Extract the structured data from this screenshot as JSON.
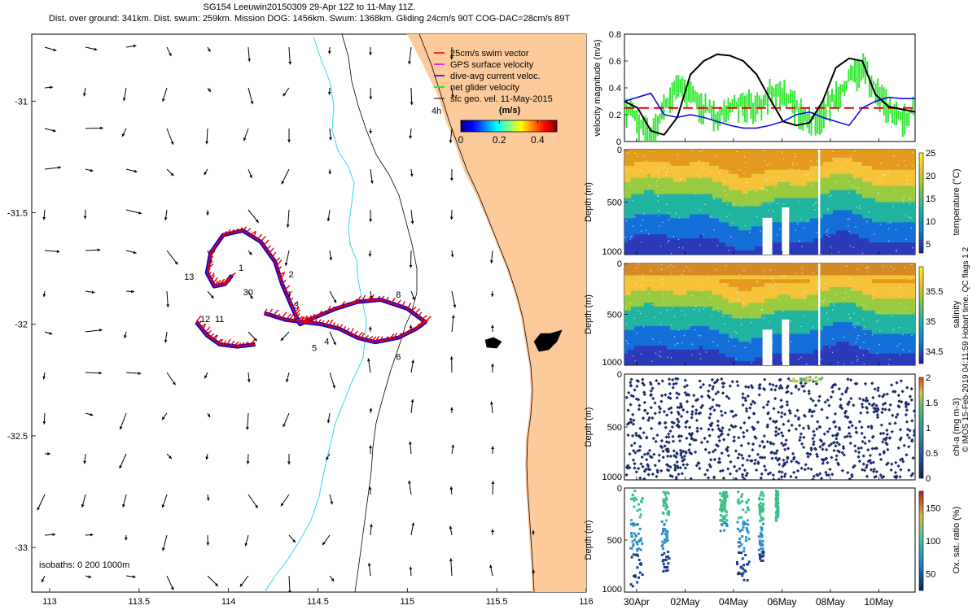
{
  "header": {
    "title": "SG154 Leeuwin20150309 29-Apr 12Z to 11-May 11Z.",
    "subtitle": "Dist. over ground: 341km. Dist. swum: 259km. Mission DOG: 1456km. Swum: 1368km. Gliding 24cm/s 90T COG-DAC=28cm/s 89T"
  },
  "footer_note": "© IMOS 15-Feb-2019 04:11:59 Hobart time. QC flags 1 2",
  "colors": {
    "land": "#FDCB9B",
    "coast": "#000000",
    "isobath_200": "#33D6E6",
    "swim_vector": "#E60000",
    "gps_velocity": "#E600E6",
    "dive_avg": "#0000E6",
    "net_velocity": "#33E633",
    "ref_line": "#E60000"
  },
  "chart_data": [
    {
      "type": "scatter",
      "name": "map",
      "xticks": [
        "113",
        "113.5",
        "114",
        "114.5",
        "115",
        "115.5",
        "116"
      ],
      "yticks": [
        "-31",
        "-31.5",
        "-32",
        "-32.5",
        "-33"
      ],
      "xlim": [
        112.9,
        116
      ],
      "ylim": [
        -33.2,
        -30.7
      ],
      "legend": {
        "placement": "top-right",
        "entries": [
          "25cm/s swim vector",
          "GPS surface velocity",
          "dive-avg current veloc.",
          "net glider velocity",
          "sfc geo. vel. 11-May-2015"
        ]
      },
      "colorbar": {
        "label": "(m/s)",
        "ticks": [
          "0",
          "0.2",
          "0.4"
        ],
        "range": [
          0,
          0.5
        ]
      },
      "isobath_note": "isobaths: 0   200   1000m",
      "track_labels": [
        "1",
        "2",
        "3",
        "4",
        "5",
        "6",
        "8",
        "11",
        "12",
        "13",
        "30"
      ],
      "annotation_4h": "4h",
      "track": [
        [
          114.2,
          -31.95
        ],
        [
          114.32,
          -31.98
        ],
        [
          114.42,
          -31.99
        ],
        [
          114.52,
          -32.0
        ],
        [
          114.62,
          -32.02
        ],
        [
          114.72,
          -32.06
        ],
        [
          114.82,
          -32.08
        ],
        [
          114.95,
          -32.06
        ],
        [
          115.05,
          -32.02
        ],
        [
          115.1,
          -31.99
        ],
        [
          115.0,
          -31.93
        ],
        [
          114.85,
          -31.89
        ],
        [
          114.72,
          -31.9
        ],
        [
          114.6,
          -31.93
        ],
        [
          114.48,
          -31.97
        ],
        [
          114.4,
          -32.0
        ],
        [
          114.37,
          -31.95
        ],
        [
          114.3,
          -31.82
        ],
        [
          114.26,
          -31.72
        ],
        [
          114.18,
          -31.63
        ],
        [
          114.08,
          -31.58
        ],
        [
          113.97,
          -31.6
        ],
        [
          113.9,
          -31.68
        ],
        [
          113.88,
          -31.77
        ],
        [
          113.92,
          -31.83
        ],
        [
          113.98,
          -31.82
        ],
        [
          114.02,
          -31.78
        ]
      ],
      "track2": [
        [
          113.82,
          -31.99
        ],
        [
          113.88,
          -32.05
        ],
        [
          113.95,
          -32.09
        ],
        [
          114.05,
          -32.1
        ],
        [
          114.15,
          -32.09
        ]
      ]
    },
    {
      "type": "line",
      "name": "velocity",
      "ylabel": "velocity magnitude (m/s)",
      "yticks": [
        "0",
        "0.2",
        "0.4",
        "0.6",
        "0.8"
      ],
      "ylim": [
        0,
        0.8
      ],
      "xlim": [
        0,
        12
      ],
      "reference_line": 0.25,
      "series": [
        {
          "values": [
            0.3,
            0.25,
            0.08,
            0.05,
            0.18,
            0.5,
            0.6,
            0.65,
            0.64,
            0.6,
            0.5,
            0.32,
            0.15,
            0.12,
            0.14,
            0.3,
            0.55,
            0.62,
            0.6,
            0.35,
            0.26,
            0.24,
            0.22
          ]
        },
        {
          "values": [
            0.3,
            0.33,
            0.36,
            0.2,
            0.18,
            0.2,
            0.18,
            0.15,
            0.12,
            0.1,
            0.1,
            0.12,
            0.15,
            0.2,
            0.22,
            0.18,
            0.15,
            0.12,
            0.25,
            0.3,
            0.33,
            0.32,
            0.32
          ]
        },
        {
          "values": [
            0.3,
            0.2,
            0.1,
            0.3,
            0.45,
            0.4,
            0.3,
            0.22,
            0.3,
            0.35,
            0.3,
            0.4,
            0.42,
            0.3,
            0.2,
            0.25,
            0.4,
            0.5,
            0.6,
            0.45,
            0.3,
            0.2,
            0.3
          ]
        }
      ]
    }
  ],
  "time_axis": {
    "xticks": [
      "30Apr",
      "02May",
      "04May",
      "06May",
      "08May",
      "10May"
    ],
    "xlim": [
      0,
      12
    ],
    "depth_ticks": [
      "0",
      "500",
      "1000"
    ],
    "depth_label": "Depth (m)"
  },
  "profiles": [
    {
      "name": "temperature",
      "colorbar_label": "temperature (°C)",
      "ticks": [
        "5",
        "10",
        "15",
        "20",
        "25"
      ],
      "range": [
        3,
        25
      ]
    },
    {
      "name": "salinity",
      "colorbar_label": "salinity",
      "ticks": [
        "34.5",
        "35",
        "35.5"
      ],
      "range": [
        34.3,
        35.9
      ]
    },
    {
      "name": "chl-a",
      "colorbar_label": "chl-a (mg m-3)",
      "ticks": [
        "0",
        "0.5",
        "1",
        "1.5",
        "2"
      ],
      "range": [
        0,
        2
      ]
    },
    {
      "name": "oxygen",
      "colorbar_label": "Ox. sat. ratio (%)",
      "ticks": [
        "50",
        "100",
        "150"
      ],
      "range": [
        25,
        175
      ]
    }
  ]
}
